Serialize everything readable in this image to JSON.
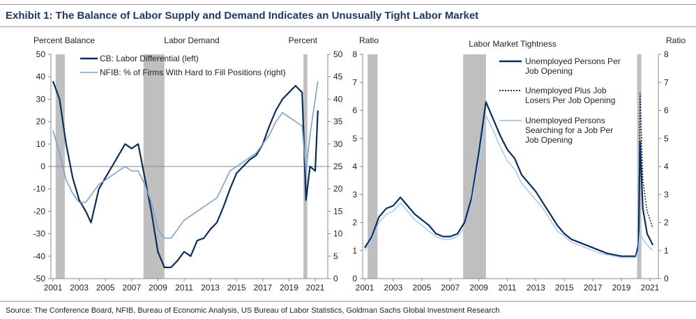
{
  "title": "Exhibit 1: The Balance of Labor Supply and Demand Indicates an Unusually Tight Labor Market",
  "source": "Source: The Conference Board, NFIB, Bureau of Economic Analysis, US Bureau of Labor Statistics, Goldman Sachs Global Investment Research",
  "chart_data": [
    {
      "type": "line",
      "title": "Labor Demand",
      "ylabel": "Percent Balance",
      "y2label": "Percent",
      "xlim": [
        2001,
        2021.5
      ],
      "ylim": [
        -50,
        50
      ],
      "y2lim": [
        0,
        50
      ],
      "xticks": [
        "2001",
        "2003",
        "2005",
        "2007",
        "2009",
        "2011",
        "2013",
        "2015",
        "2017",
        "2019",
        "2021"
      ],
      "yticks": [
        "50",
        "40",
        "30",
        "20",
        "10",
        "0",
        "-10",
        "-20",
        "-30",
        "-40",
        "-50"
      ],
      "y2ticks": [
        "50",
        "45",
        "40",
        "35",
        "30",
        "25",
        "20",
        "15",
        "10",
        "5",
        "0"
      ],
      "recessions": [
        [
          2001.2,
          2001.9
        ],
        [
          2007.9,
          2009.5
        ],
        [
          2020.1,
          2020.4
        ]
      ],
      "legend": "top-left",
      "series": [
        {
          "name": "CB: Labor Differential (left)",
          "axis": "left",
          "color": "#0b2d5a",
          "style": "solid",
          "points": [
            [
              2001,
              38
            ],
            [
              2001.5,
              30
            ],
            [
              2002,
              10
            ],
            [
              2002.5,
              -5
            ],
            [
              2003,
              -15
            ],
            [
              2003.5,
              -20
            ],
            [
              2003.9,
              -25
            ],
            [
              2004.5,
              -10
            ],
            [
              2005,
              -5
            ],
            [
              2005.5,
              0
            ],
            [
              2006,
              5
            ],
            [
              2006.5,
              10
            ],
            [
              2007,
              8
            ],
            [
              2007.5,
              10
            ],
            [
              2008,
              -5
            ],
            [
              2008.5,
              -20
            ],
            [
              2009,
              -38
            ],
            [
              2009.5,
              -45
            ],
            [
              2010,
              -45
            ],
            [
              2010.5,
              -42
            ],
            [
              2011,
              -38
            ],
            [
              2011.5,
              -40
            ],
            [
              2012,
              -33
            ],
            [
              2012.5,
              -32
            ],
            [
              2013,
              -28
            ],
            [
              2013.5,
              -25
            ],
            [
              2014,
              -18
            ],
            [
              2014.5,
              -10
            ],
            [
              2015,
              -3
            ],
            [
              2015.5,
              0
            ],
            [
              2016,
              3
            ],
            [
              2016.5,
              5
            ],
            [
              2017,
              10
            ],
            [
              2017.5,
              18
            ],
            [
              2018,
              25
            ],
            [
              2018.5,
              30
            ],
            [
              2019,
              33
            ],
            [
              2019.5,
              36
            ],
            [
              2020,
              33
            ],
            [
              2020.3,
              -15
            ],
            [
              2020.6,
              0
            ],
            [
              2021,
              -2
            ],
            [
              2021.2,
              25
            ]
          ]
        },
        {
          "name": "NFIB: % of Firms With Hard to Fill Positions (right)",
          "axis": "right",
          "color": "#7b9fd0",
          "style": "solid",
          "points": [
            [
              2001,
              33
            ],
            [
              2001.5,
              28
            ],
            [
              2002,
              22
            ],
            [
              2002.5,
              19
            ],
            [
              2003,
              17
            ],
            [
              2003.5,
              17
            ],
            [
              2004,
              19
            ],
            [
              2004.5,
              21
            ],
            [
              2005,
              22
            ],
            [
              2005.5,
              23
            ],
            [
              2006,
              24
            ],
            [
              2006.5,
              25
            ],
            [
              2007,
              24
            ],
            [
              2007.5,
              24
            ],
            [
              2008,
              21
            ],
            [
              2008.5,
              17
            ],
            [
              2009,
              11
            ],
            [
              2009.5,
              9
            ],
            [
              2010,
              9
            ],
            [
              2010.5,
              11
            ],
            [
              2011,
              13
            ],
            [
              2011.5,
              14
            ],
            [
              2012,
              15
            ],
            [
              2012.5,
              16
            ],
            [
              2013,
              17
            ],
            [
              2013.5,
              18
            ],
            [
              2014,
              21
            ],
            [
              2014.5,
              24
            ],
            [
              2015,
              25
            ],
            [
              2015.5,
              26
            ],
            [
              2016,
              27
            ],
            [
              2016.5,
              28
            ],
            [
              2017,
              30
            ],
            [
              2017.5,
              32
            ],
            [
              2018,
              35
            ],
            [
              2018.5,
              37
            ],
            [
              2019,
              36
            ],
            [
              2019.5,
              35
            ],
            [
              2020,
              34
            ],
            [
              2020.3,
              24
            ],
            [
              2020.6,
              32
            ],
            [
              2021,
              40
            ],
            [
              2021.2,
              44
            ]
          ]
        }
      ]
    },
    {
      "type": "line",
      "title": "Labor Market Tightness",
      "ylabel": "Ratio",
      "y2label": "Ratio",
      "xlim": [
        2001,
        2021.5
      ],
      "ylim": [
        0,
        8
      ],
      "xticks": [
        "2001",
        "2003",
        "2005",
        "2007",
        "2009",
        "2011",
        "2013",
        "2015",
        "2017",
        "2019",
        "2021"
      ],
      "yticks": [
        "8",
        "7",
        "6",
        "5",
        "4",
        "3",
        "2",
        "1",
        "0"
      ],
      "recessions": [
        [
          2001.2,
          2001.9
        ],
        [
          2007.9,
          2009.5
        ],
        [
          2020.1,
          2020.4
        ]
      ],
      "legend": "top-right",
      "series": [
        {
          "name": "Unemployed Persons Per Job Opening",
          "color": "#0b2d5a",
          "style": "solid",
          "points": [
            [
              2001,
              1.1
            ],
            [
              2001.5,
              1.5
            ],
            [
              2002,
              2.2
            ],
            [
              2002.5,
              2.5
            ],
            [
              2003,
              2.6
            ],
            [
              2003.5,
              2.9
            ],
            [
              2004,
              2.6
            ],
            [
              2004.5,
              2.3
            ],
            [
              2005,
              2.1
            ],
            [
              2005.5,
              1.9
            ],
            [
              2006,
              1.6
            ],
            [
              2006.5,
              1.5
            ],
            [
              2007,
              1.5
            ],
            [
              2007.5,
              1.6
            ],
            [
              2008,
              2.0
            ],
            [
              2008.5,
              2.9
            ],
            [
              2009,
              4.5
            ],
            [
              2009.5,
              6.3
            ],
            [
              2010,
              5.7
            ],
            [
              2010.5,
              5.1
            ],
            [
              2011,
              4.6
            ],
            [
              2011.5,
              4.3
            ],
            [
              2012,
              3.7
            ],
            [
              2012.5,
              3.4
            ],
            [
              2013,
              3.1
            ],
            [
              2013.5,
              2.7
            ],
            [
              2014,
              2.3
            ],
            [
              2014.5,
              1.9
            ],
            [
              2015,
              1.6
            ],
            [
              2015.5,
              1.4
            ],
            [
              2016,
              1.3
            ],
            [
              2016.5,
              1.2
            ],
            [
              2017,
              1.1
            ],
            [
              2017.5,
              1.0
            ],
            [
              2018,
              0.9
            ],
            [
              2018.5,
              0.85
            ],
            [
              2019,
              0.8
            ],
            [
              2019.5,
              0.8
            ],
            [
              2020,
              0.8
            ],
            [
              2020.2,
              1.2
            ],
            [
              2020.3,
              4.9
            ],
            [
              2020.5,
              2.5
            ],
            [
              2020.8,
              1.6
            ],
            [
              2021,
              1.4
            ],
            [
              2021.2,
              1.2
            ]
          ]
        },
        {
          "name": "Unemployed Plus Job Losers Per Job Opening",
          "color": "#0b2d5a",
          "style": "dotted",
          "points": [
            [
              2020.2,
              1.2
            ],
            [
              2020.3,
              6.6
            ],
            [
              2020.5,
              3.5
            ],
            [
              2020.8,
              2.4
            ],
            [
              2021,
              2.1
            ],
            [
              2021.2,
              1.8
            ]
          ]
        },
        {
          "name": "Unemployed Persons Searching for a Job Per Job Opening",
          "color": "#a9cdf0",
          "style": "solid",
          "points": [
            [
              2001,
              1.0
            ],
            [
              2001.5,
              1.4
            ],
            [
              2002,
              2.0
            ],
            [
              2002.5,
              2.3
            ],
            [
              2003,
              2.4
            ],
            [
              2003.5,
              2.7
            ],
            [
              2004,
              2.4
            ],
            [
              2004.5,
              2.1
            ],
            [
              2005,
              1.9
            ],
            [
              2005.5,
              1.7
            ],
            [
              2006,
              1.5
            ],
            [
              2006.5,
              1.4
            ],
            [
              2007,
              1.4
            ],
            [
              2007.5,
              1.5
            ],
            [
              2008,
              1.8
            ],
            [
              2008.5,
              2.7
            ],
            [
              2009,
              4.2
            ],
            [
              2009.5,
              5.8
            ],
            [
              2010,
              5.3
            ],
            [
              2010.5,
              4.7
            ],
            [
              2011,
              4.2
            ],
            [
              2011.5,
              3.9
            ],
            [
              2012,
              3.4
            ],
            [
              2012.5,
              3.1
            ],
            [
              2013,
              2.8
            ],
            [
              2013.5,
              2.5
            ],
            [
              2014,
              2.1
            ],
            [
              2014.5,
              1.7
            ],
            [
              2015,
              1.5
            ],
            [
              2015.5,
              1.3
            ],
            [
              2016,
              1.2
            ],
            [
              2016.5,
              1.1
            ],
            [
              2017,
              1.0
            ],
            [
              2017.5,
              0.9
            ],
            [
              2018,
              0.85
            ],
            [
              2018.5,
              0.8
            ],
            [
              2019,
              0.75
            ],
            [
              2019.5,
              0.75
            ],
            [
              2020,
              0.75
            ],
            [
              2020.2,
              1.0
            ],
            [
              2020.3,
              1.7
            ],
            [
              2020.5,
              1.4
            ],
            [
              2020.8,
              1.2
            ],
            [
              2021,
              1.1
            ],
            [
              2021.2,
              1.0
            ]
          ]
        }
      ]
    }
  ]
}
